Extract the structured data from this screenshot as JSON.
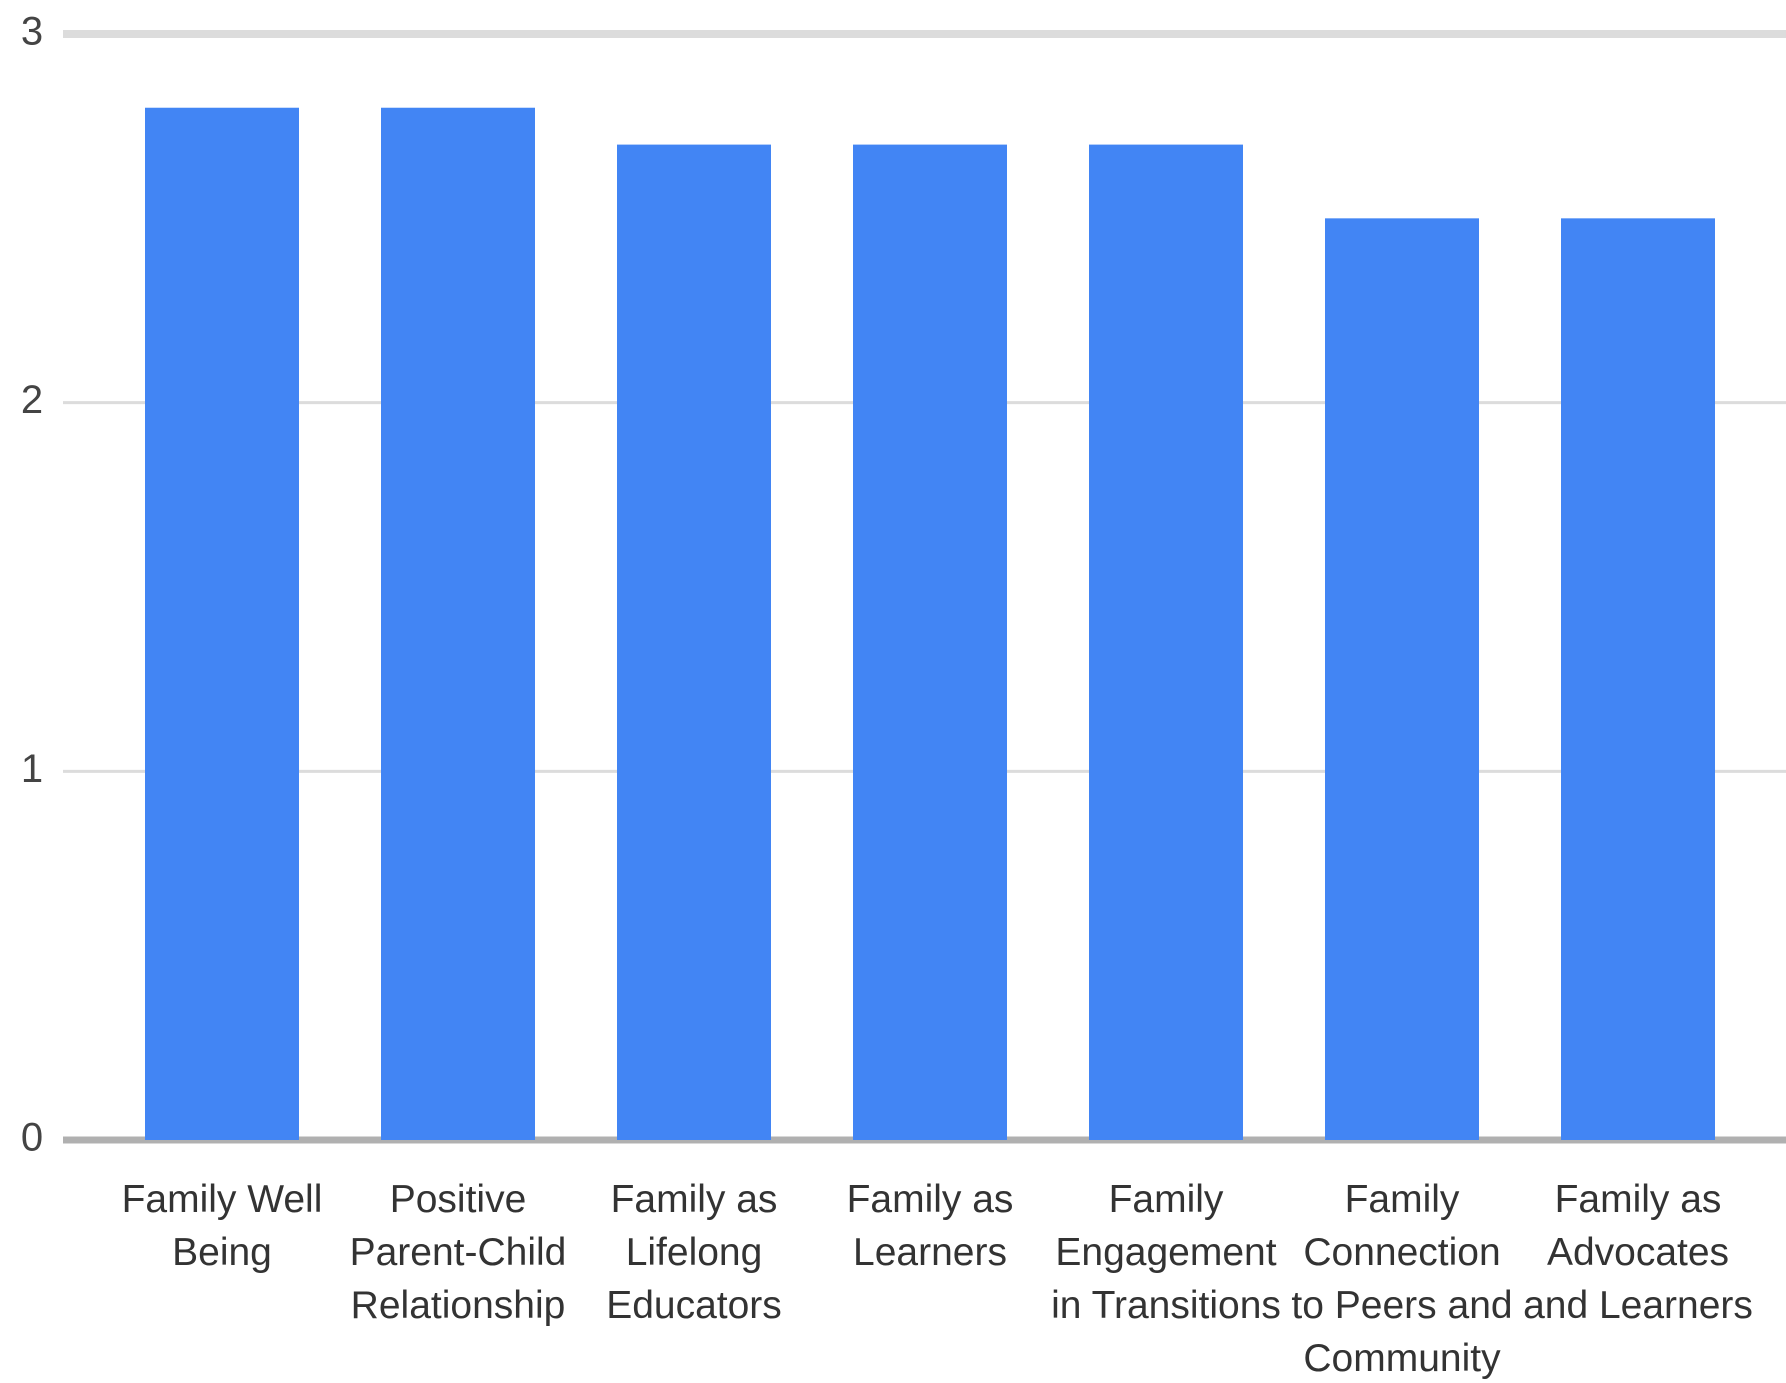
{
  "chart_data": {
    "type": "bar",
    "categories": [
      "Family Well Being",
      "Positive Parent-Child Relationship",
      "Family as Lifelong Educators",
      "Family as Learners",
      "Family Engagement in Transitions",
      "Family Connection to Peers and Community",
      "Family as Advocates and Learners"
    ],
    "values": [
      2.8,
      2.8,
      2.7,
      2.7,
      2.7,
      2.5,
      2.5
    ],
    "color": "#4285f4",
    "ylim": [
      0,
      3
    ],
    "yticks": [
      0,
      1,
      2,
      3
    ],
    "grid": true
  }
}
